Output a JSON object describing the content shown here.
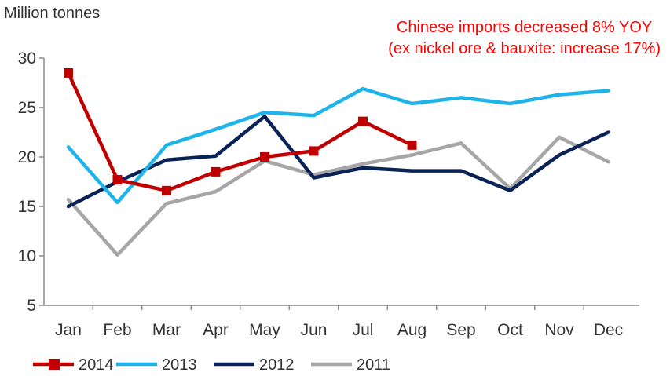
{
  "chart_data": {
    "type": "line",
    "ylabel": "Million tonnes",
    "annotation": {
      "line1": "Chinese imports decreased 8% YOY",
      "line2": "(ex nickel ore & bauxite: increase 17%)",
      "color": "#ff0000"
    },
    "categories": [
      "Jan",
      "Feb",
      "Mar",
      "Apr",
      "May",
      "Jun",
      "Jul",
      "Aug",
      "Sep",
      "Oct",
      "Nov",
      "Dec"
    ],
    "ylim": [
      5,
      30
    ],
    "yticks": [
      5,
      10,
      15,
      20,
      25,
      30
    ],
    "grid": false,
    "legend_placement": "bottom-left",
    "series": [
      {
        "name": "2014",
        "color": "#c00000",
        "marker": "square",
        "values": [
          28.5,
          17.7,
          16.6,
          18.5,
          20.0,
          20.6,
          23.6,
          21.2,
          null,
          null,
          null,
          null
        ]
      },
      {
        "name": "2013",
        "color": "#1eb4ea",
        "marker": "none",
        "values": [
          21.0,
          15.4,
          21.2,
          22.8,
          24.5,
          24.2,
          26.9,
          25.4,
          26.0,
          25.4,
          26.3,
          26.7
        ]
      },
      {
        "name": "2012",
        "color": "#0a2255",
        "marker": "none",
        "values": [
          15.0,
          17.5,
          19.7,
          20.1,
          24.1,
          17.9,
          18.9,
          18.6,
          18.6,
          16.6,
          20.2,
          22.5
        ]
      },
      {
        "name": "2011",
        "color": "#a6a6a6",
        "marker": "none",
        "values": [
          15.7,
          10.1,
          15.3,
          16.5,
          19.6,
          18.2,
          19.3,
          20.2,
          21.4,
          16.8,
          22.0,
          19.5
        ]
      }
    ]
  }
}
